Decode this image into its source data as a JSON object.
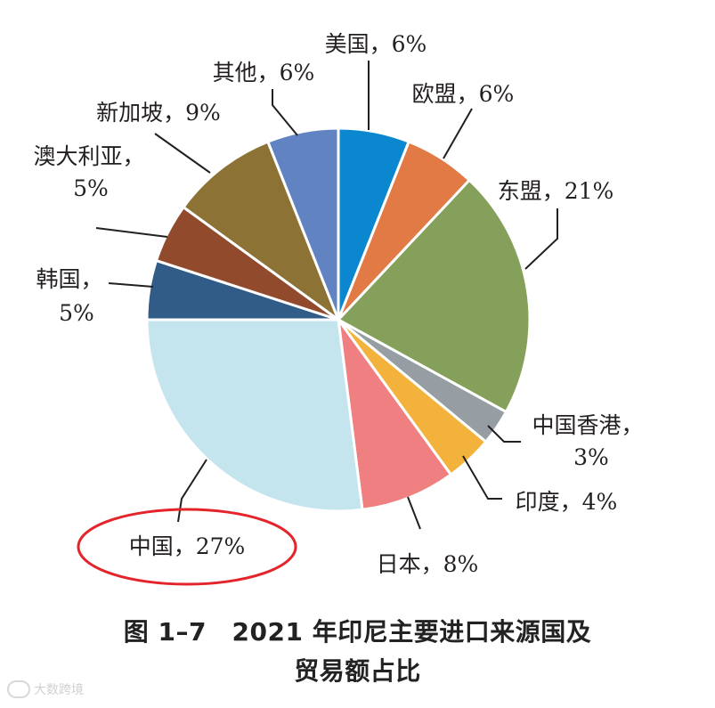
{
  "chart_data": {
    "type": "pie",
    "title": "图 1–7　2021 年印尼主要进口来源国及贸易额占比",
    "slices": [
      {
        "label": "美国，6%",
        "value": 6,
        "color": "#0a87cf"
      },
      {
        "label": "欧盟，6%",
        "value": 6,
        "color": "#e27a45"
      },
      {
        "label": "东盟，21%",
        "value": 21,
        "color": "#85a05a"
      },
      {
        "label": "中国香港，3%",
        "value": 3,
        "color": "#979ea3"
      },
      {
        "label": "印度，4%",
        "value": 4,
        "color": "#f3b23b"
      },
      {
        "label": "日本，8%",
        "value": 8,
        "color": "#ef7f80"
      },
      {
        "label": "中国，27%",
        "value": 27,
        "color": "#c4e4ee"
      },
      {
        "label": "韩国，5%",
        "value": 5,
        "color": "#325c88"
      },
      {
        "label": "澳大利亚，5%",
        "value": 5,
        "color": "#914a2c"
      },
      {
        "label": "新加坡，9%",
        "value": 9,
        "color": "#8d7235"
      },
      {
        "label": "其他，6%",
        "value": 6,
        "color": "#6283c1"
      }
    ],
    "highlight": {
      "label": "中国，27%",
      "color": "#e3242b"
    }
  },
  "caption": {
    "line1": "图 1–7　2021 年印尼主要进口来源国及",
    "line2": "贸易额占比"
  },
  "watermark": {
    "text": "大数跨境"
  }
}
